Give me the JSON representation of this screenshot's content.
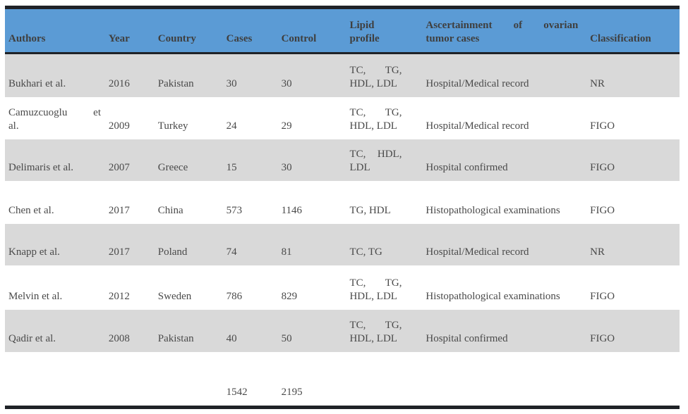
{
  "colors": {
    "header_background": "#5b9bd5",
    "shaded_row_background": "#d9d9d9",
    "rule_bar": "#1f2227",
    "header_text": "#3f3f3f",
    "body_text": "#4a4a4a"
  },
  "table": {
    "header": {
      "authors": "Authors",
      "year": "Year",
      "country": "Country",
      "cases": "Cases",
      "control": "Control",
      "lipid_l1": "Lipid",
      "lipid_l2": "profile",
      "asc_w1": "Ascertainment",
      "asc_w2": "of",
      "asc_w3": "ovarian",
      "asc_l2": "tumor cases",
      "classification": "Classification"
    },
    "rows": [
      {
        "author": "Bukhari et al.",
        "year": "2016",
        "country": "Pakistan",
        "cases": "30",
        "control": "30",
        "lipid_l1a": "TC,",
        "lipid_l1b": "TG,",
        "lipid_l2": "HDL, LDL",
        "ascertainment": "Hospital/Medical record",
        "classification": "NR"
      },
      {
        "author_l1a": "Camuzcuoglu",
        "author_l1b": "et",
        "author_l2": "al.",
        "year": "2009",
        "country": "Turkey",
        "cases": "24",
        "control": "29",
        "lipid_l1a": "TC,",
        "lipid_l1b": "TG,",
        "lipid_l2": "HDL, LDL",
        "ascertainment": "Hospital/Medical record",
        "classification": "FIGO"
      },
      {
        "author": "Delimaris et al.",
        "year": "2007",
        "country": "Greece",
        "cases": "15",
        "control": "30",
        "lipid_l1a": "TC,",
        "lipid_l1b": "HDL,",
        "lipid_l2": "LDL",
        "ascertainment": "Hospital confirmed",
        "classification": "FIGO"
      },
      {
        "author": "Chen et al.",
        "year": "2017",
        "country": "China",
        "cases": "573",
        "control": "1146",
        "lipid": "TG, HDL",
        "ascertainment": "Histopathological examinations",
        "classification": "FIGO"
      },
      {
        "author": "Knapp et al.",
        "year": "2017",
        "country": "Poland",
        "cases": "74",
        "control": "81",
        "lipid": "TC, TG",
        "ascertainment": "Hospital/Medical record",
        "classification": "NR"
      },
      {
        "author": "Melvin et al.",
        "year": "2012",
        "country": "Sweden",
        "cases": "786",
        "control": "829",
        "lipid_l1a": "TC,",
        "lipid_l1b": "TG,",
        "lipid_l2": "HDL, LDL",
        "ascertainment": "Histopathological examinations",
        "classification": "FIGO"
      },
      {
        "author": "Qadir et al.",
        "year": "2008",
        "country": "Pakistan",
        "cases": "40",
        "control": "50",
        "lipid_l1a": "TC,",
        "lipid_l1b": "TG,",
        "lipid_l2": "HDL, LDL",
        "ascertainment": "Hospital confirmed",
        "classification": "FIGO"
      }
    ],
    "totals": {
      "cases": "1542",
      "control": "2195"
    }
  }
}
